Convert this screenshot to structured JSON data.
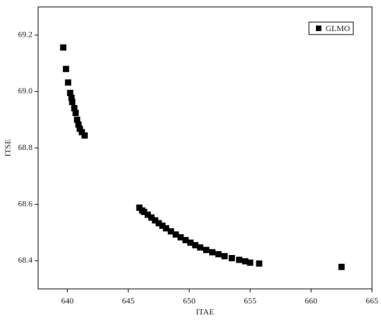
{
  "chart_data": {
    "type": "scatter",
    "x_label": "ITAE",
    "y_label": "ITSE",
    "x": [
      639.66,
      639.89,
      640.06,
      640.23,
      640.34,
      640.4,
      640.57,
      640.68,
      640.8,
      640.91,
      641.02,
      641.19,
      641.42,
      645.91,
      646.14,
      646.3,
      646.6,
      646.9,
      647.2,
      647.5,
      647.8,
      648.1,
      648.5,
      648.9,
      649.3,
      649.7,
      650.1,
      650.5,
      650.9,
      651.4,
      651.9,
      652.4,
      652.9,
      653.5,
      654.1,
      654.6,
      655.0,
      655.74,
      662.5
    ],
    "series": [
      {
        "name": "GLMO",
        "color": "#000000",
        "values": [
          69.156,
          69.08,
          69.032,
          68.995,
          68.978,
          68.963,
          68.941,
          68.924,
          68.9,
          68.883,
          68.868,
          68.856,
          68.844,
          68.588,
          68.578,
          68.573,
          68.563,
          68.553,
          68.543,
          68.533,
          68.524,
          68.515,
          68.504,
          68.493,
          68.483,
          68.473,
          68.464,
          68.455,
          68.447,
          68.438,
          68.43,
          68.423,
          68.416,
          68.409,
          68.403,
          68.398,
          68.393,
          68.39,
          68.378
        ]
      }
    ],
    "xlim": [
      637.6,
      665
    ],
    "ylim": [
      68.3,
      69.3
    ],
    "xticks": [
      640,
      645,
      650,
      655,
      660,
      665
    ],
    "yticks": [
      68.4,
      68.6,
      68.8,
      {
        "value": 69.0,
        "label": "69.0"
      },
      69.2
    ],
    "legend": "upper right"
  }
}
